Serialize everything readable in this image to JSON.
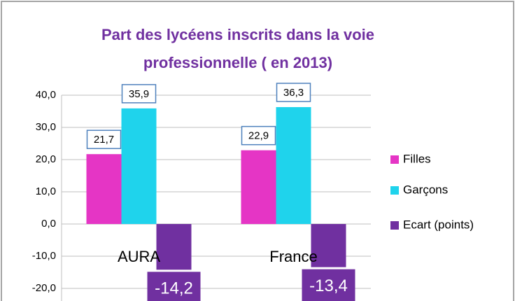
{
  "chart_data": {
    "type": "bar",
    "title": "Part des lycéens inscrits dans la voie professionnelle ( en 2013)",
    "categories": [
      "AURA",
      "France"
    ],
    "series": [
      {
        "name": "Filles",
        "color": "#e535c5",
        "values": [
          21.7,
          22.9
        ],
        "value_labels": [
          "21,7",
          "22,9"
        ]
      },
      {
        "name": "Garçons",
        "color": "#1fd3ec",
        "values": [
          35.9,
          36.3
        ],
        "value_labels": [
          "35,9",
          "36,3"
        ]
      },
      {
        "name": "Ecart (points)",
        "color": "#7030a0",
        "values": [
          -14.2,
          -13.4
        ],
        "value_labels": [
          "-14,2",
          "-13,4"
        ]
      }
    ],
    "ylim": [
      -20,
      40
    ],
    "yticks": [
      {
        "value": -20,
        "label": "-20,0"
      },
      {
        "value": -10,
        "label": "-10,0"
      },
      {
        "value": 0,
        "label": "0,0"
      },
      {
        "value": 10,
        "label": "10,0"
      },
      {
        "value": 20,
        "label": "20,0"
      },
      {
        "value": 30,
        "label": "30,0"
      },
      {
        "value": 40,
        "label": "40,0"
      }
    ],
    "grid": true,
    "legend": "right"
  }
}
